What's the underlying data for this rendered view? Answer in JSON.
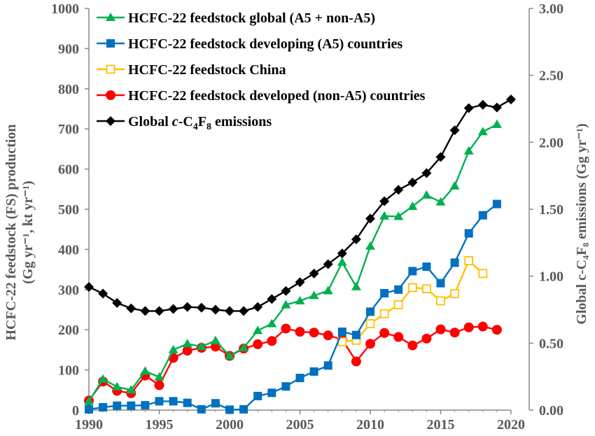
{
  "chart_data": {
    "type": "line",
    "x": [
      1990,
      1991,
      1992,
      1993,
      1994,
      1995,
      1996,
      1997,
      1998,
      1999,
      2000,
      2001,
      2002,
      2003,
      2004,
      2005,
      2006,
      2007,
      2008,
      2009,
      2010,
      2011,
      2012,
      2013,
      2014,
      2015,
      2016,
      2017,
      2018,
      2019,
      2020
    ],
    "xlim": [
      1990,
      2020
    ],
    "xticks": [
      "1990",
      "1995",
      "2000",
      "2005",
      "2010",
      "2015",
      "2020"
    ],
    "ylim_left": [
      0,
      1000
    ],
    "yticks_left": [
      "0",
      "100",
      "200",
      "300",
      "400",
      "500",
      "600",
      "700",
      "800",
      "900",
      "1000"
    ],
    "ylim_right": [
      0,
      3
    ],
    "yticks_right": [
      "0.00",
      "0.50",
      "1.00",
      "1.50",
      "2.00",
      "2.50",
      "3.00"
    ],
    "ylabel_left_line1": "HCFC-22 feedstock (FS) production",
    "ylabel_left_line2": "(Gg yr⁻¹, kt yr⁻¹)",
    "ylabel_right": "Global c-C₄F₈ emissions (Gg yr⁻¹)",
    "series": [
      {
        "name": "HCFC-22 feedstock global (A5 + non-A5)",
        "color": "#00b050",
        "marker": "triangle",
        "axis": "left",
        "values": [
          22,
          77,
          58,
          50,
          97,
          82,
          150,
          165,
          158,
          173,
          135,
          155,
          198,
          215,
          262,
          272,
          285,
          297,
          368,
          307,
          408,
          483,
          482,
          507,
          535,
          518,
          558,
          645,
          693,
          711,
          null
        ]
      },
      {
        "name": "HCFC-22 feedstock developing (A5) countries",
        "color": "#0070c0",
        "marker": "square",
        "axis": "left",
        "values": [
          2,
          7,
          11,
          11,
          12,
          22,
          22,
          18,
          2,
          17,
          1,
          2,
          35,
          43,
          59,
          80,
          96,
          111,
          195,
          187,
          245,
          291,
          300,
          346,
          357,
          316,
          367,
          440,
          485,
          513,
          null
        ]
      },
      {
        "name": "HCFC-22 feedstock China",
        "color": "#ffc000",
        "marker": "open-square",
        "axis": "left",
        "values": [
          null,
          null,
          null,
          null,
          null,
          null,
          null,
          null,
          null,
          null,
          null,
          null,
          null,
          null,
          null,
          null,
          null,
          null,
          170,
          174,
          215,
          240,
          262,
          305,
          302,
          272,
          290,
          372,
          340,
          null,
          null
        ]
      },
      {
        "name": "HCFC-22 feedstock developed (non-A5) countries",
        "color": "#ff0000",
        "marker": "circle",
        "axis": "left",
        "values": [
          24,
          71,
          48,
          42,
          86,
          62,
          130,
          148,
          155,
          158,
          135,
          153,
          164,
          172,
          203,
          195,
          193,
          186,
          176,
          121,
          165,
          192,
          182,
          161,
          178,
          201,
          193,
          206,
          208,
          200,
          null
        ]
      },
      {
        "name": "Global c-C4F8 emissions",
        "color": "#000000",
        "marker": "diamond",
        "axis": "right",
        "values": [
          0.92,
          0.87,
          0.8,
          0.76,
          0.74,
          0.74,
          0.755,
          0.77,
          0.765,
          0.75,
          0.74,
          0.74,
          0.77,
          0.83,
          0.89,
          0.955,
          1.02,
          1.09,
          1.17,
          1.275,
          1.43,
          1.56,
          1.645,
          1.7,
          1.77,
          1.89,
          2.09,
          2.255,
          2.28,
          2.26,
          2.32
        ]
      }
    ],
    "legend_placement": "top-left",
    "grid": false
  }
}
